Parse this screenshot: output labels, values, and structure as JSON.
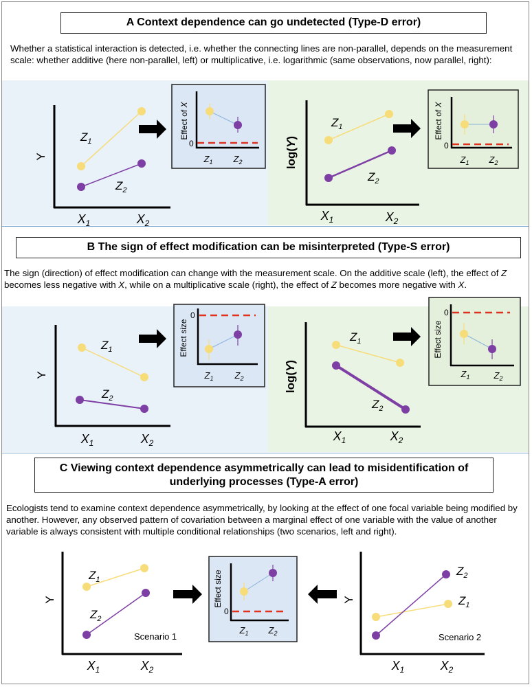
{
  "sections": [
    {
      "title": "A Context dependence can go undetected (Type-D error)",
      "desc": "Whether a statistical interaction is detected, i.e. whether the connecting lines are non-parallel, depends on the measurement scale: whether additive (here non-parallel, left) or multiplicative, i.e. logarithmic (same observations, now parallel, right):",
      "left": {
        "ylabel": "Y",
        "xlabels": [
          "X1",
          "X2"
        ],
        "z1": "Z1",
        "z2": "Z2",
        "inset": {
          "ylabel": "Effect of X",
          "zero": "0",
          "xlabels": [
            "Z1",
            "Z2"
          ]
        }
      },
      "right": {
        "ylabel": "log(Y)",
        "xlabels": [
          "X1",
          "X2"
        ],
        "z1": "Z1",
        "z2": "Z2",
        "inset": {
          "ylabel": "Effect of X",
          "zero": "0",
          "xlabels": [
            "Z1",
            "Z2"
          ]
        }
      }
    },
    {
      "title": "B The sign of effect modification can be misinterpreted (Type-S error)",
      "desc": "The sign (direction) of effect modification can change with the measurement scale. On the additive scale (left), the effect of Z becomes less negative with X, while on a multiplicative scale (right), the effect of Z becomes more negative with X.",
      "left": {
        "ylabel": "Y",
        "xlabels": [
          "X1",
          "X2"
        ],
        "z1": "Z1",
        "z2": "Z2",
        "inset": {
          "ylabel": "Effect size",
          "zero": "0",
          "xlabels": [
            "Z1",
            "Z2"
          ]
        }
      },
      "right": {
        "ylabel": "log(Y)",
        "xlabels": [
          "X1",
          "X2"
        ],
        "z1": "Z1",
        "z2": "Z2",
        "inset": {
          "ylabel": "Effect size",
          "zero": "0",
          "xlabels": [
            "Z1",
            "Z2"
          ]
        }
      }
    },
    {
      "title_line1": "C Viewing context dependence asymmetrically can lead to misidentification of",
      "title_line2": "underlying processes (Type-A error)",
      "desc": "Ecologists tend to examine context dependence asymmetrically, by looking at the effect of one focal variable being modified by another. However, any observed pattern of covariation between a marginal effect of one variable with the value of another variable is always consistent with multiple conditional relationships (two scenarios, left and right).",
      "left": {
        "ylabel": "Y",
        "xlabels": [
          "X1",
          "X2"
        ],
        "z1": "Z1",
        "z2": "Z2",
        "scenario": "Scenario 1"
      },
      "inset": {
        "ylabel": "Effect size",
        "zero": "0",
        "xlabels": [
          "Z1",
          "Z2"
        ]
      },
      "right": {
        "ylabel": "Y",
        "xlabels": [
          "X1",
          "X2"
        ],
        "z1": "Z1",
        "z2": "Z2",
        "scenario": "Scenario 2"
      }
    }
  ],
  "colors": {
    "z1": "#f7dc7a",
    "z2": "#7e3fa5",
    "inset_link": "#8db4dc",
    "zero_line": "#e0301e",
    "band_blue": "#e9f1f9",
    "band_green": "#eaf4e4",
    "inset_blue": "#dbe7f5",
    "inset_green": "#e4f0dc",
    "divider": "#7aa7cf"
  },
  "icons": [
    "right-arrow-icon",
    "left-arrow-icon"
  ]
}
